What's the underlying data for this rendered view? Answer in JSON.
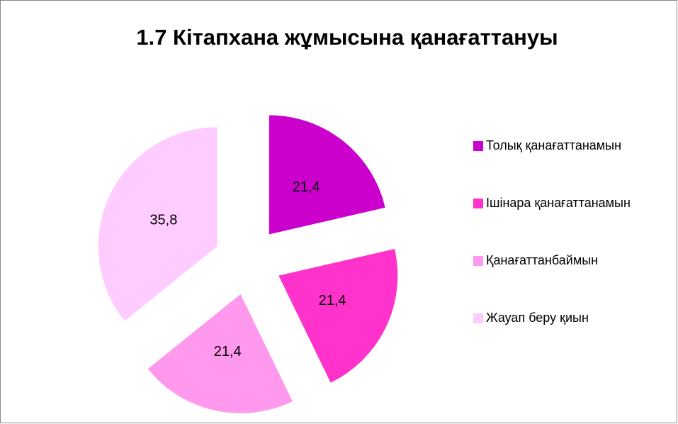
{
  "chart_data": {
    "type": "pie",
    "title": "1.7 Кітапхана жұмысына қанағаттануы",
    "categories": [
      "Толық қанағаттанамын",
      "Ішінара қанағаттанамын",
      "Қанағаттанбаймын",
      "Жауап беру қиын"
    ],
    "values": [
      21.4,
      21.4,
      21.4,
      35.8
    ],
    "value_labels": [
      "21,4",
      "21,4",
      "21,4",
      "35,8"
    ],
    "colors": [
      "#cc00cc",
      "#ff33cc",
      "#ff99ee",
      "#ffccff"
    ],
    "legend": "right"
  }
}
